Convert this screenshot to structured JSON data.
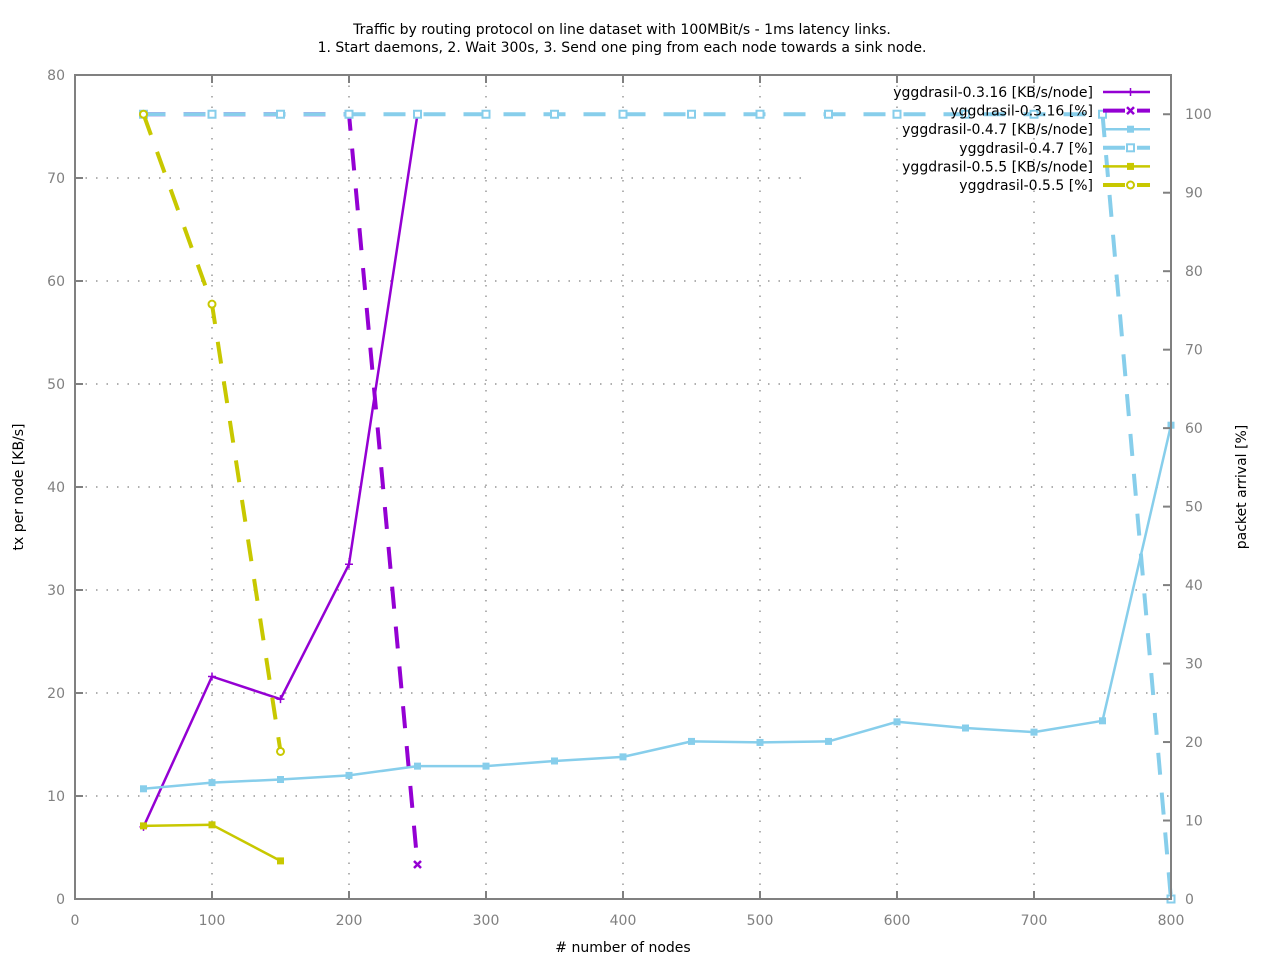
{
  "chart_data": {
    "type": "line",
    "title": [
      "Traffic by routing protocol on line dataset with 100MBit/s - 1ms latency links.",
      "1. Start daemons, 2. Wait 300s, 3. Send one ping from each node towards a sink node."
    ],
    "xlabel": "# number of nodes",
    "ylabel": "tx per node [KB/s]",
    "y2label": "packet arrival [%]",
    "xlim": [
      0,
      800
    ],
    "ylim": [
      0,
      80
    ],
    "y2lim": [
      0,
      105
    ],
    "xticks": [
      0,
      100,
      200,
      300,
      400,
      500,
      600,
      700,
      800
    ],
    "yticks": [
      0,
      10,
      20,
      30,
      40,
      50,
      60,
      70,
      80
    ],
    "y2ticks": [
      0,
      10,
      20,
      30,
      40,
      50,
      60,
      70,
      80,
      90,
      100
    ],
    "grid": true,
    "legend_position": "top-right",
    "series": [
      {
        "name": "yggdrasil-0.3.16 [KB/s/node]",
        "axis": "y",
        "color": "#9400d3",
        "style": "solid",
        "marker": "plus",
        "x": [
          50,
          100,
          150,
          200,
          250
        ],
        "values": [
          7.0,
          21.6,
          19.4,
          32.5,
          76.2
        ]
      },
      {
        "name": "yggdrasil-0.3.16 [%]",
        "axis": "y2",
        "color": "#9400d3",
        "style": "dashed",
        "marker": "cross",
        "x": [
          50,
          100,
          150,
          200,
          250
        ],
        "values": [
          100,
          100,
          100,
          100,
          4.4
        ]
      },
      {
        "name": "yggdrasil-0.4.7 [KB/s/node]",
        "axis": "y",
        "color": "#87ceeb",
        "style": "solid",
        "marker": "filled-square",
        "x": [
          50,
          100,
          150,
          200,
          250,
          300,
          350,
          400,
          450,
          500,
          550,
          600,
          650,
          700,
          750,
          800
        ],
        "values": [
          10.7,
          11.3,
          11.6,
          12.0,
          12.9,
          12.9,
          13.4,
          13.8,
          15.3,
          15.2,
          15.3,
          17.2,
          16.6,
          16.2,
          17.3,
          46.0
        ]
      },
      {
        "name": "yggdrasil-0.4.7 [%]",
        "axis": "y2",
        "color": "#87ceeb",
        "style": "dashed",
        "marker": "open-square",
        "x": [
          50,
          100,
          150,
          200,
          250,
          300,
          350,
          400,
          450,
          500,
          550,
          600,
          650,
          700,
          750,
          800
        ],
        "values": [
          100,
          100,
          100,
          100,
          100,
          100,
          100,
          100,
          100,
          100,
          100,
          100,
          100,
          100,
          100,
          0
        ]
      },
      {
        "name": "yggdrasil-0.5.5 [KB/s/node]",
        "axis": "y",
        "color": "#c8c800",
        "style": "solid",
        "marker": "filled-square",
        "x": [
          50,
          100,
          150
        ],
        "values": [
          7.1,
          7.2,
          3.7
        ]
      },
      {
        "name": "yggdrasil-0.5.5 [%]",
        "axis": "y2",
        "color": "#c8c800",
        "style": "dashed",
        "marker": "open-circle",
        "x": [
          50,
          100,
          150
        ],
        "values": [
          100,
          75.8,
          18.8
        ]
      }
    ]
  }
}
